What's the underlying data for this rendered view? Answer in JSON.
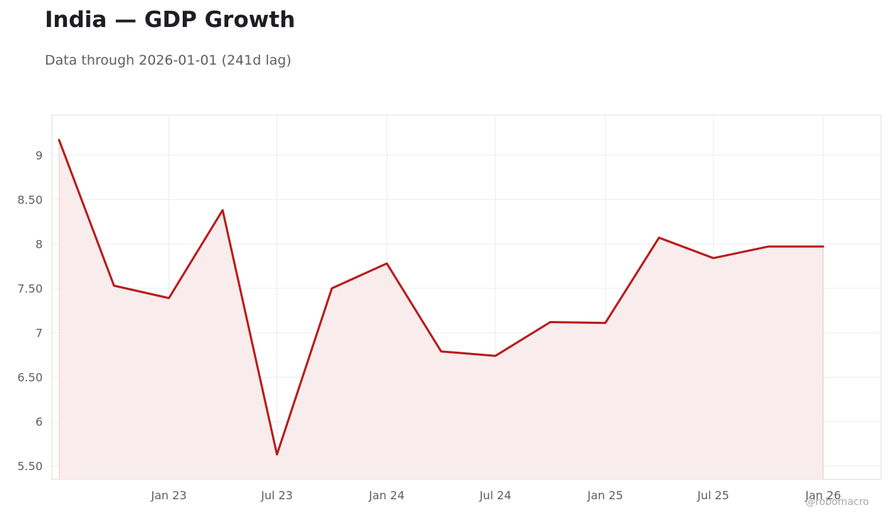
{
  "header": {
    "title": "India — GDP Growth",
    "subtitle": "Data through 2026-01-01 (241d lag)"
  },
  "watermark": "@robomacro",
  "colors": {
    "line": "#b71c1c",
    "fill": "#f9ecec",
    "grid": "#ececec",
    "frame": "#dcdcdc",
    "text": "#5e5e66"
  },
  "chart_data": {
    "type": "area",
    "title": "India — GDP Growth",
    "subtitle": "Data through 2026-01-01 (241d lag)",
    "xlabel": "",
    "ylabel": "",
    "grid": true,
    "legend": "none",
    "x": [
      "2022-07-01",
      "2022-10-01",
      "2023-01-01",
      "2023-04-01",
      "2023-07-01",
      "2023-10-01",
      "2024-01-01",
      "2024-04-01",
      "2024-07-01",
      "2024-10-01",
      "2025-01-01",
      "2025-04-01",
      "2025-07-01",
      "2025-10-01",
      "2026-01-01"
    ],
    "series": [
      {
        "values": [
          9.17,
          7.53,
          7.39,
          8.38,
          5.63,
          7.5,
          7.78,
          6.79,
          6.74,
          7.12,
          7.11,
          8.07,
          7.84,
          7.97,
          7.97
        ]
      }
    ],
    "ylim": [
      5.35,
      9.45
    ],
    "yticks": [
      5.5,
      6,
      6.5,
      7,
      7.5,
      8,
      8.5,
      9
    ],
    "ytick_labels": [
      "5.50",
      "6",
      "6.50",
      "7",
      "7.50",
      "8",
      "8.50",
      "9"
    ],
    "xticks": [
      "2023-01-01",
      "2023-07-01",
      "2024-01-01",
      "2024-07-01",
      "2025-01-01",
      "2025-07-01",
      "2026-01-01"
    ],
    "xtick_labels": [
      "Jan 23",
      "Jul 23",
      "Jan 24",
      "Jul 24",
      "Jan 25",
      "Jul 25",
      "Jan 26"
    ]
  }
}
